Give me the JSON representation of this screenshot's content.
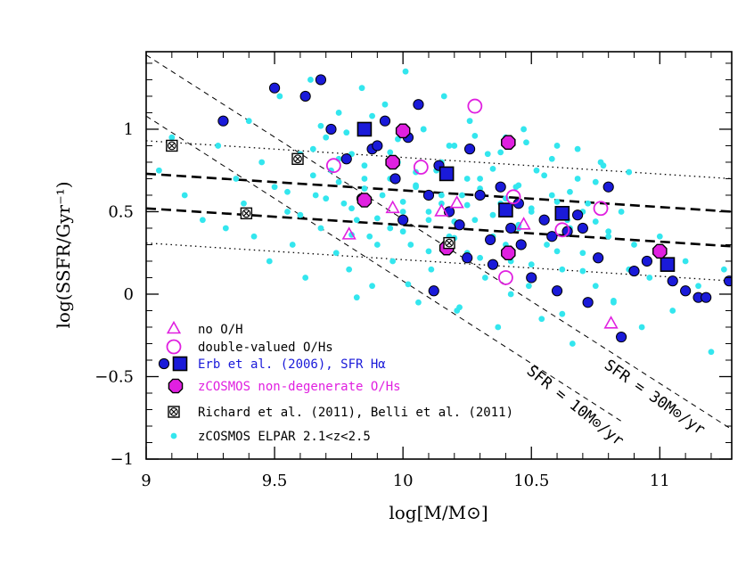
{
  "chart_data": {
    "type": "scatter",
    "xlabel": "log[M/M⊙]",
    "ylabel": "log(SSFR/Gyr⁻¹)",
    "xlim": [
      9.0,
      11.28
    ],
    "ylim": [
      -1.0,
      1.47
    ],
    "x_ticks": [
      9,
      9.5,
      10,
      10.5,
      11
    ],
    "x_tick_labels": [
      "9",
      "9.5",
      "10",
      "10.5",
      "11"
    ],
    "y_ticks": [
      -1,
      -0.5,
      0,
      0.5,
      1
    ],
    "y_tick_labels": [
      "−1",
      "−0.5",
      "0",
      "0.5",
      "1"
    ],
    "colors": {
      "cyan": "#33e6ee",
      "erb_blue": "#1a1ad9",
      "magenta": "#e020e0",
      "black": "#000000",
      "legend_blue": "#1a1ad9",
      "legend_magenta": "#e020e0"
    },
    "line_labels": {
      "sfr10": "SFR = 10M⊙/yr",
      "sfr30": "SFR = 30M⊙/yr"
    },
    "lines": [
      {
        "name": "SFR = 10 Msun/yr",
        "style": "dashed-thin",
        "points": [
          [
            9.0,
            1.08
          ],
          [
            10.86,
            -0.78
          ]
        ]
      },
      {
        "name": "SFR = 30 Msun/yr",
        "style": "dashed-thin",
        "points": [
          [
            9.0,
            1.45
          ],
          [
            11.28,
            -0.82
          ]
        ]
      },
      {
        "name": "fit upper",
        "style": "dashed-thick",
        "points": [
          [
            9.0,
            0.73
          ],
          [
            11.28,
            0.5
          ]
        ]
      },
      {
        "name": "fit lower",
        "style": "dashed-thick",
        "points": [
          [
            9.0,
            0.52
          ],
          [
            11.28,
            0.29
          ]
        ]
      },
      {
        "name": "scatter upper",
        "style": "dotted",
        "points": [
          [
            9.0,
            0.93
          ],
          [
            11.28,
            0.7
          ]
        ]
      },
      {
        "name": "scatter lower",
        "style": "dotted",
        "points": [
          [
            9.0,
            0.31
          ],
          [
            11.28,
            0.08
          ]
        ]
      }
    ],
    "series": [
      {
        "name": "zCOSMOS ELPAR 2.1<z<2.5",
        "marker": "small-dot",
        "x": [
          9.05,
          9.1,
          9.15,
          9.22,
          9.28,
          9.31,
          9.35,
          9.38,
          9.4,
          9.42,
          9.45,
          9.48,
          9.5,
          9.52,
          9.55,
          9.57,
          9.6,
          9.62,
          9.64,
          9.66,
          9.68,
          9.7,
          9.72,
          9.74,
          9.75,
          9.77,
          9.79,
          9.8,
          9.82,
          9.84,
          9.85,
          9.87,
          9.88,
          9.9,
          9.92,
          9.93,
          9.95,
          9.96,
          9.98,
          10.0,
          10.01,
          10.03,
          10.05,
          10.06,
          10.08,
          10.1,
          10.11,
          10.13,
          10.15,
          10.16,
          10.18,
          10.2,
          10.21,
          10.23,
          10.25,
          10.26,
          10.28,
          10.3,
          10.32,
          10.33,
          10.35,
          10.37,
          10.38,
          10.4,
          10.42,
          10.44,
          10.45,
          10.47,
          10.49,
          10.5,
          10.52,
          10.54,
          10.56,
          10.58,
          10.6,
          10.62,
          10.64,
          10.66,
          10.68,
          10.7,
          10.72,
          10.75,
          10.77,
          10.8,
          10.82,
          10.85,
          10.88,
          10.9,
          10.93,
          10.96,
          11.0,
          11.05,
          11.1,
          11.15,
          11.2,
          11.25,
          9.55,
          9.6,
          9.65,
          9.7,
          9.75,
          9.8,
          9.85,
          9.9,
          9.95,
          10.0,
          10.05,
          10.1,
          10.15,
          10.2,
          10.25,
          10.3,
          10.35,
          10.4,
          10.45,
          10.5,
          10.55,
          10.6,
          10.65,
          10.7,
          10.75,
          10.8,
          9.65,
          9.75,
          9.85,
          9.95,
          10.05,
          10.15,
          10.25,
          10.35,
          10.45,
          10.55,
          10.65,
          10.75,
          9.8,
          9.9,
          10.0,
          10.1,
          10.2,
          10.3,
          10.4,
          10.5,
          10.6,
          10.7,
          9.68,
          9.78,
          9.88,
          9.98,
          10.08,
          10.18,
          10.28,
          10.38,
          10.48,
          10.58,
          10.68,
          10.78,
          10.88,
          9.82,
          10.02,
          10.22,
          10.42,
          10.62,
          10.82
        ],
        "y": [
          0.75,
          0.95,
          0.6,
          0.45,
          0.9,
          0.4,
          0.7,
          0.55,
          1.05,
          0.35,
          0.8,
          0.2,
          0.65,
          1.2,
          0.5,
          0.3,
          0.85,
          0.1,
          1.3,
          0.6,
          0.4,
          0.95,
          0.75,
          0.25,
          1.1,
          0.55,
          0.15,
          0.85,
          0.45,
          1.25,
          0.7,
          0.35,
          0.05,
          0.9,
          0.6,
          1.15,
          0.4,
          0.2,
          0.8,
          0.5,
          1.35,
          0.3,
          0.65,
          -0.05,
          1.0,
          0.45,
          0.15,
          0.75,
          0.55,
          1.2,
          0.35,
          0.9,
          -0.1,
          0.6,
          0.25,
          1.05,
          0.45,
          0.7,
          0.1,
          0.85,
          0.35,
          -0.2,
          0.55,
          0.95,
          0.2,
          0.65,
          0.4,
          1.0,
          0.05,
          0.5,
          0.75,
          -0.15,
          0.3,
          0.6,
          0.9,
          0.15,
          0.45,
          -0.3,
          0.7,
          0.25,
          0.55,
          0.05,
          0.8,
          0.35,
          -0.05,
          0.5,
          0.15,
          0.3,
          -0.2,
          0.1,
          0.35,
          -0.1,
          0.2,
          0.05,
          -0.35,
          0.15,
          0.62,
          0.48,
          0.72,
          0.58,
          0.68,
          0.52,
          0.64,
          0.46,
          0.7,
          0.56,
          0.66,
          0.5,
          0.6,
          0.44,
          0.54,
          0.64,
          0.48,
          0.58,
          0.42,
          0.52,
          0.46,
          0.56,
          0.4,
          0.5,
          0.44,
          0.38,
          0.88,
          0.82,
          0.78,
          0.86,
          0.74,
          0.8,
          0.7,
          0.76,
          0.66,
          0.72,
          0.62,
          0.68,
          0.36,
          0.3,
          0.38,
          0.26,
          0.34,
          0.22,
          0.3,
          0.18,
          0.26,
          0.14,
          1.02,
          0.98,
          1.08,
          0.94,
          1.0,
          0.9,
          0.96,
          0.86,
          0.92,
          0.82,
          0.88,
          0.78,
          0.74,
          -0.02,
          0.06,
          -0.08,
          0.0,
          -0.12,
          -0.04
        ]
      },
      {
        "name": "Erb et al. (2006), SFR Hα",
        "marker": "filled-circle",
        "x": [
          9.3,
          9.5,
          9.62,
          9.68,
          9.72,
          9.78,
          9.84,
          9.88,
          9.93,
          9.97,
          10.02,
          10.06,
          10.1,
          10.14,
          10.18,
          10.22,
          10.26,
          10.3,
          10.34,
          10.38,
          10.42,
          10.46,
          10.5,
          10.55,
          10.6,
          10.64,
          10.68,
          10.72,
          10.76,
          10.8,
          10.85,
          10.9,
          10.95,
          11.05,
          11.1,
          11.15,
          11.18,
          11.27,
          9.9,
          10.0,
          10.12,
          10.25,
          10.35,
          10.45,
          10.58,
          10.7
        ],
        "y": [
          1.05,
          1.25,
          1.2,
          1.3,
          1.0,
          0.82,
          0.58,
          0.88,
          1.05,
          0.7,
          0.95,
          1.15,
          0.6,
          0.78,
          0.5,
          0.42,
          0.88,
          0.6,
          0.33,
          0.65,
          0.4,
          0.3,
          0.1,
          0.45,
          0.02,
          0.38,
          0.48,
          -0.05,
          0.22,
          0.65,
          -0.26,
          0.14,
          0.2,
          0.08,
          0.02,
          -0.02,
          -0.02,
          0.08,
          0.9,
          0.45,
          0.02,
          0.22,
          0.18,
          0.55,
          0.35,
          0.4
        ]
      },
      {
        "name": "Erb et al. (2006), SFR Hα (stacked)",
        "marker": "filled-square",
        "x": [
          9.85,
          10.17,
          10.4,
          10.62,
          11.03
        ],
        "y": [
          1.0,
          0.73,
          0.51,
          0.49,
          0.18
        ]
      },
      {
        "name": "zCOSMOS non-degenerate O/Hs",
        "marker": "filled-hexagon",
        "x": [
          9.85,
          9.96,
          10.0,
          10.17,
          10.41,
          10.41,
          11.0
        ],
        "y": [
          0.57,
          0.8,
          0.99,
          0.28,
          0.92,
          0.25,
          0.26
        ]
      },
      {
        "name": "double-valued O/Hs",
        "marker": "open-circle",
        "x": [
          9.73,
          10.07,
          10.28,
          10.4,
          10.43,
          10.62,
          10.77
        ],
        "y": [
          0.78,
          0.77,
          1.14,
          0.1,
          0.59,
          0.39,
          0.52
        ]
      },
      {
        "name": "no O/H",
        "marker": "open-triangle",
        "x": [
          9.79,
          9.96,
          10.15,
          10.21,
          10.47,
          10.81
        ],
        "y": [
          0.36,
          0.52,
          0.5,
          0.55,
          0.42,
          -0.18
        ]
      },
      {
        "name": "Richard et al. (2011), Belli et al. (2011)",
        "marker": "crossed-square",
        "x": [
          9.1,
          9.39,
          9.59,
          10.18
        ],
        "y": [
          0.9,
          0.49,
          0.82,
          0.31
        ]
      }
    ],
    "legend": {
      "placement": "bottom-left",
      "entries": [
        {
          "label": "no O/H",
          "marker": "open-triangle",
          "color": "#e020e0",
          "text_color": "#000000"
        },
        {
          "label": "double-valued O/Hs",
          "marker": "open-circle",
          "color": "#e020e0",
          "text_color": "#000000"
        },
        {
          "label": "Erb et al. (2006), SFR Hα",
          "marker": "filled-circle+square",
          "color": "#1a1ad9",
          "text_color": "#1a1ad9"
        },
        {
          "label": "zCOSMOS non-degenerate O/Hs",
          "marker": "filled-hexagon",
          "color": "#e020e0",
          "text_color": "#e020e0"
        },
        {
          "label": "Richard et al. (2011), Belli et al. (2011)",
          "marker": "crossed-square",
          "color": "#000000",
          "text_color": "#000000"
        },
        {
          "label": "zCOSMOS ELPAR 2.1<z<2.5",
          "marker": "small-dot",
          "color": "#33e6ee",
          "text_color": "#000000"
        }
      ]
    }
  }
}
